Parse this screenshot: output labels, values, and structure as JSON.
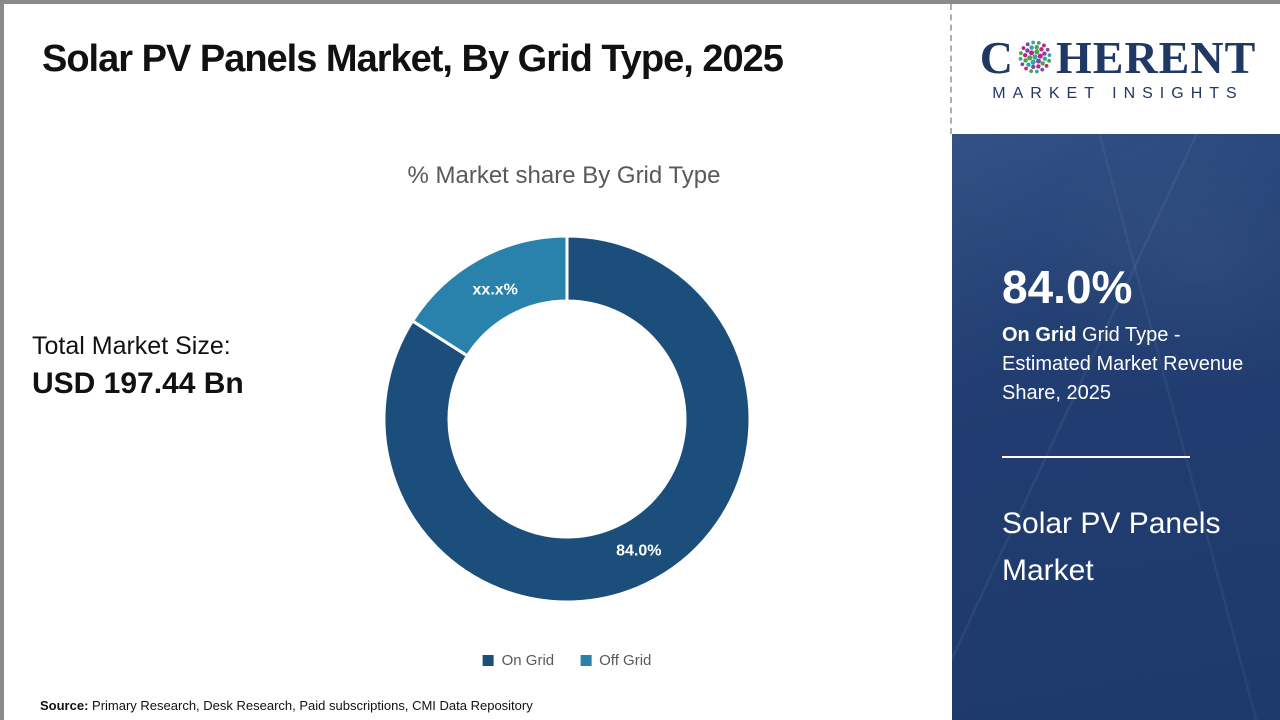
{
  "page": {
    "title": "Solar PV Panels Market, By Grid Type, 2025",
    "source_label": "Source:",
    "source_text": " Primary Research, Desk Research, Paid subscriptions, CMI Data Repository"
  },
  "logo": {
    "brand_first_letter": "C",
    "brand_rest": "HERENT",
    "brand_sub": "MARKET INSIGHTS",
    "brand_color": "#1f3864",
    "globe_colors": [
      "#2fa8a2",
      "#47a447",
      "#c0218c",
      "#7a4ba0"
    ]
  },
  "chart": {
    "subtitle": "% Market share By Grid Type",
    "total_label": "Total Market Size:",
    "total_value": "USD 197.44 Bn"
  },
  "chart_data": {
    "type": "pie",
    "donut": true,
    "title": "% Market share By Grid Type",
    "categories": [
      "On Grid",
      "Off Grid"
    ],
    "values": [
      84.0,
      16.0
    ],
    "slice_labels": [
      "84.0%",
      "xx.x%"
    ],
    "colors": [
      "#1c4e7c",
      "#2882ab"
    ],
    "start_angle_deg": 0,
    "direction": "clockwise",
    "legend_position": "bottom"
  },
  "sidebar": {
    "bg_color": "#1f3a6c",
    "stat_value": "84.0%",
    "stat_bold": "On Grid",
    "stat_rest": " Grid Type - Estimated Market Revenue Share, 2025",
    "product": "Solar PV Panels Market"
  }
}
